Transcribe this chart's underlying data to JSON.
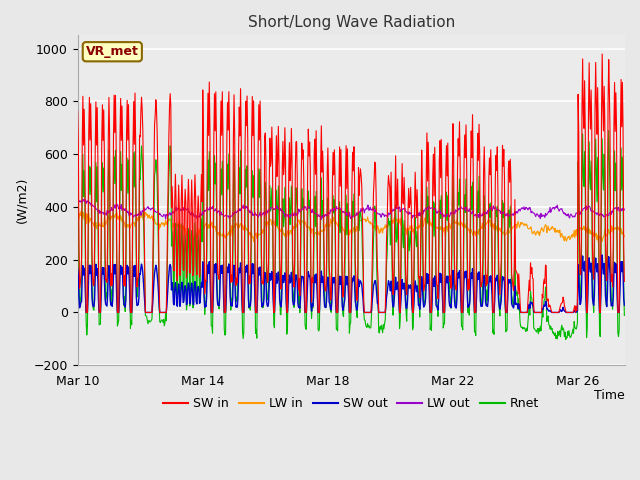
{
  "title": "Short/Long Wave Radiation",
  "xlabel": "Time",
  "ylabel": "(W/m2)",
  "ylim": [
    -200,
    1050
  ],
  "yticks": [
    -200,
    0,
    200,
    400,
    600,
    800,
    1000
  ],
  "xlim_days": [
    0,
    17.5
  ],
  "xtick_labels": [
    "Mar 10",
    "Mar 14",
    "Mar 18",
    "Mar 22",
    "Mar 26"
  ],
  "xtick_positions": [
    0,
    4,
    8,
    12,
    16
  ],
  "label_box": "VR_met",
  "colors": {
    "SW_in": "#ff0000",
    "LW_in": "#ff9900",
    "SW_out": "#0000cc",
    "LW_out": "#9900cc",
    "Rnet": "#00bb00"
  },
  "legend_labels": [
    "SW in",
    "LW in",
    "SW out",
    "LW out",
    "Rnet"
  ],
  "bg_color": "#e8e8e8",
  "plot_bg": "#ebebeb",
  "grid_color": "#ffffff",
  "figsize": [
    6.4,
    4.8
  ],
  "dpi": 100
}
